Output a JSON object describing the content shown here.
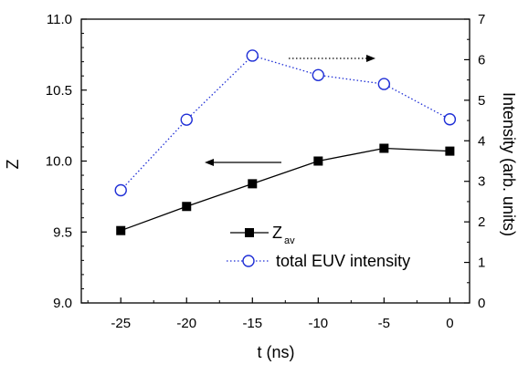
{
  "chart_data": {
    "type": "line",
    "x": [
      -25,
      -20,
      -15,
      -10,
      -5,
      0
    ],
    "xlabel": "t (ns)",
    "xlim": [
      -28,
      1.5
    ],
    "xticks": [
      "-25",
      "-20",
      "-15",
      "-10",
      "-5",
      "0"
    ],
    "ylabel_left": "Z",
    "ylim_left": [
      9.0,
      11.0
    ],
    "yticks_left": [
      "9.0",
      "9.5",
      "10.0",
      "10.5",
      "11.0"
    ],
    "ylabel_right": "Intensity (arb. units)",
    "ylim_right": [
      0,
      7
    ],
    "yticks_right": [
      "0",
      "1",
      "2",
      "3",
      "4",
      "5",
      "6",
      "7"
    ],
    "series": [
      {
        "name_main": "Z",
        "name_sub": "av",
        "axis": "left",
        "style": "solid",
        "marker": "filled-square",
        "color": "#000000",
        "values": [
          9.51,
          9.68,
          9.84,
          10.0,
          10.09,
          10.07
        ]
      },
      {
        "name": "total EUV intensity",
        "axis": "right",
        "style": "dotted",
        "marker": "open-circle",
        "color": "#1f2fd6",
        "values": [
          2.78,
          4.52,
          6.1,
          5.62,
          5.4,
          4.53
        ]
      }
    ],
    "annotations": [
      {
        "type": "arrow",
        "direction": "left",
        "style": "solid",
        "color": "#000000",
        "points_to": "left-axis"
      },
      {
        "type": "arrow",
        "direction": "right",
        "style": "dotted",
        "color": "#000000",
        "points_to": "right-axis"
      }
    ],
    "legend_position": "lower-right",
    "grid": false
  }
}
